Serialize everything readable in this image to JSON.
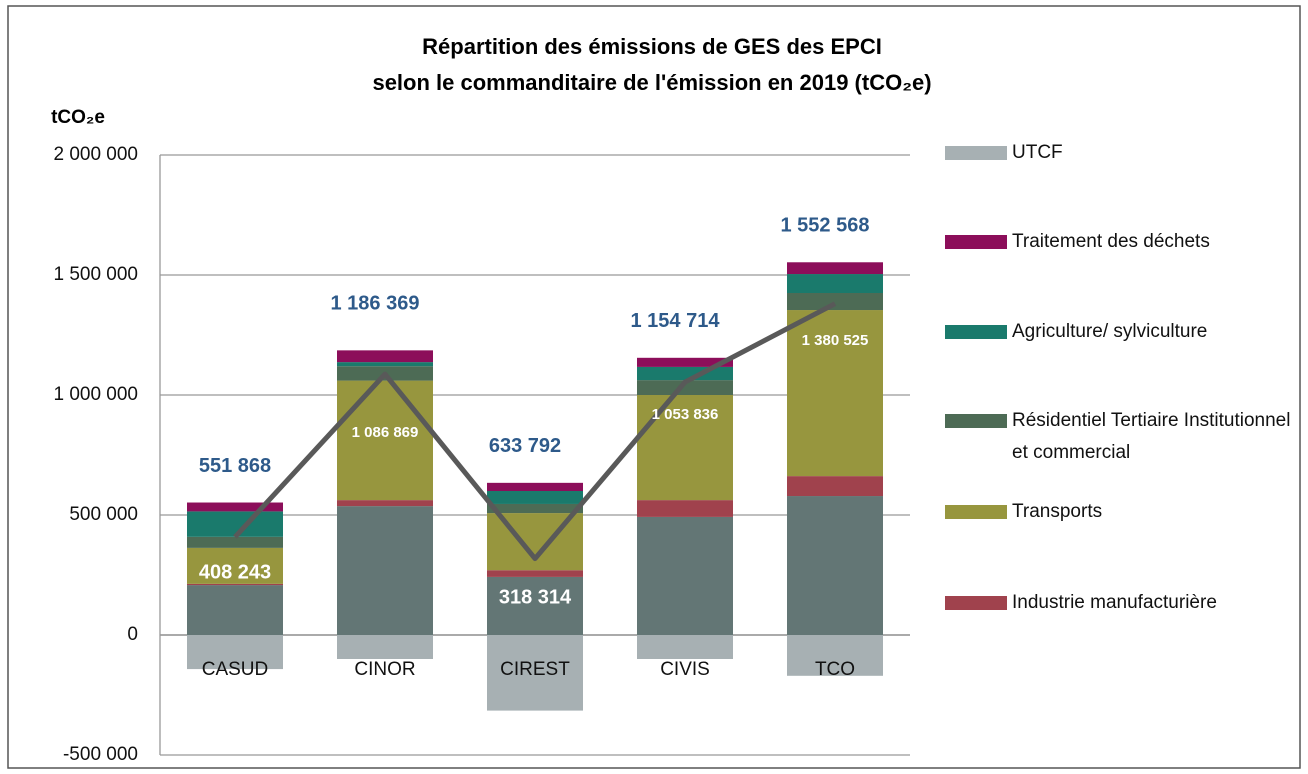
{
  "chart_data": {
    "type": "stacked_bar_line",
    "title": [
      "Répartition des émissions de GES des EPCI",
      "selon le commanditaire de l'émission en 2019 (tCO₂e)"
    ],
    "y_label": "tCO₂e",
    "categories": [
      "CASUD",
      "CINOR",
      "CIREST",
      "CIVIS",
      "TCO"
    ],
    "ylim": [
      -500000,
      2000000
    ],
    "yticks": [
      {
        "value": -500000,
        "label": "-500 000"
      },
      0,
      {
        "value": 500000,
        "label": "500 000"
      },
      {
        "value": 1000000,
        "label": "1 000 000"
      },
      {
        "value": 1500000,
        "label": "1 500 000"
      },
      {
        "value": 2000000,
        "label": "2 000 000"
      }
    ],
    "grid": true,
    "series": [
      {
        "name": null,
        "color": "#637675",
        "values": [
          208000,
          537000,
          242000,
          492000,
          579000
        ]
      },
      {
        "name": "Industrie manufacturière",
        "color": "#a0424d",
        "values": [
          5000,
          25000,
          28000,
          70000,
          83000
        ]
      },
      {
        "name": "Transports",
        "color": "#97963e",
        "values": [
          150000,
          498000,
          238000,
          438000,
          692000
        ]
      },
      {
        "name": "Résidentiel Tertiaire Institutionnel et commercial",
        "color": "#4d6b55",
        "values": [
          46000,
          60000,
          38000,
          62000,
          71000
        ]
      },
      {
        "name": "Agriculture/ sylviculture",
        "color": "#1a7a6c",
        "values": [
          106000,
          17000,
          54000,
          55000,
          79000
        ]
      },
      {
        "name": "Traitement des déchets",
        "color": "#8c0e5a",
        "values": [
          37000,
          49000,
          34000,
          38000,
          49000
        ]
      },
      {
        "name": "UTCF",
        "color": "#a7b0b3",
        "values": [
          -142000,
          -100000,
          -315000,
          -100000,
          -170000
        ]
      }
    ],
    "line": {
      "color": "#595959",
      "values": [
        408243,
        1086869,
        318314,
        1053836,
        1380525
      ],
      "value_labels": [
        "408 243",
        "1 086 869",
        "318 314",
        "1 053 836",
        "1 380 525"
      ]
    },
    "totals": {
      "color": "#2e5a8a",
      "values": [
        551868,
        1186369,
        633792,
        1154714,
        1552568
      ],
      "value_labels": [
        "551 868",
        "1 186 369",
        "633 792",
        "1 154 714",
        "1 552 568"
      ]
    }
  }
}
